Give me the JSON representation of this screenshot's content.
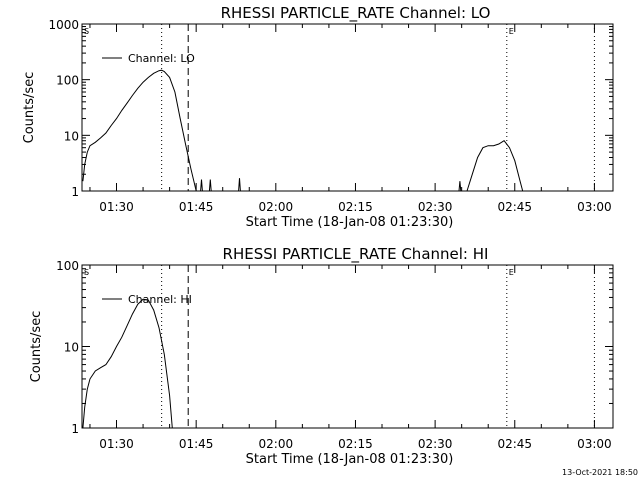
{
  "footer": {
    "stamp": "13-Oct-2021 18:50"
  },
  "chart_data": [
    {
      "type": "line",
      "title": "RHESSI PARTICLE_RATE Channel: LO",
      "xlabel": "Start Time (18-Jan-08 01:23:30)",
      "ylabel": "Counts/sec",
      "legend": {
        "label": "Channel: LO",
        "placement": "top-left"
      },
      "yscale": "log",
      "ylim": [
        1,
        1000
      ],
      "yticks": [
        {
          "v": 1,
          "label": "1"
        },
        {
          "v": 10,
          "label": "10"
        },
        {
          "v": 100,
          "label": "100"
        },
        {
          "v": 1000,
          "label": "1000"
        }
      ],
      "xlim": [
        "01:23:30",
        "03:03:30"
      ],
      "xticks": [
        "01:30",
        "01:45",
        "02:00",
        "02:15",
        "02:30",
        "02:45",
        "03:00"
      ],
      "markers": [
        {
          "time": "01:38:30",
          "style": "dotted",
          "label": ""
        },
        {
          "time": "01:43:30",
          "style": "dashed",
          "label": ""
        },
        {
          "time": "02:43:30",
          "style": "dotted",
          "label": "E"
        },
        {
          "time": "03:00:00",
          "style": "dotted",
          "label": ""
        }
      ],
      "start_label": "S",
      "series": [
        {
          "name": "Channel: LO",
          "segments": [
            [
              [
                "01:23:40",
                1.5
              ],
              [
                "01:24:00",
                3
              ],
              [
                "01:24:30",
                5
              ],
              [
                "01:25:00",
                6.5
              ],
              [
                "01:26:00",
                7.5
              ],
              [
                "01:27:00",
                9
              ],
              [
                "01:28:00",
                11
              ],
              [
                "01:29:00",
                15
              ],
              [
                "01:30:00",
                20
              ],
              [
                "01:31:00",
                28
              ],
              [
                "01:32:00",
                38
              ],
              [
                "01:33:00",
                52
              ],
              [
                "01:34:00",
                70
              ],
              [
                "01:35:00",
                90
              ],
              [
                "01:36:00",
                110
              ],
              [
                "01:37:00",
                130
              ],
              [
                "01:38:00",
                145
              ],
              [
                "01:38:30",
                148
              ],
              [
                "01:39:00",
                140
              ],
              [
                "01:40:00",
                110
              ],
              [
                "01:41:00",
                60
              ],
              [
                "01:42:00",
                20
              ],
              [
                "01:43:00",
                7
              ],
              [
                "01:44:00",
                2.5
              ],
              [
                "01:45:00",
                1
              ]
            ],
            [
              [
                "01:45:50",
                1
              ],
              [
                "01:46:00",
                1.6
              ],
              [
                "01:46:10",
                1
              ]
            ],
            [
              [
                "01:47:30",
                1
              ],
              [
                "01:47:40",
                1.6
              ],
              [
                "01:47:50",
                1
              ]
            ],
            [
              [
                "01:53:00",
                1
              ],
              [
                "01:53:10",
                1.7
              ],
              [
                "01:53:20",
                1
              ]
            ],
            [
              [
                "02:34:30",
                1
              ],
              [
                "02:34:40",
                1.5
              ],
              [
                "02:34:50",
                1
              ]
            ],
            [
              [
                "02:36:00",
                1
              ],
              [
                "02:37:00",
                2
              ],
              [
                "02:38:00",
                4
              ],
              [
                "02:39:00",
                6
              ],
              [
                "02:40:00",
                6.5
              ],
              [
                "02:41:00",
                6.5
              ],
              [
                "02:42:00",
                7
              ],
              [
                "02:43:00",
                8
              ],
              [
                "02:44:00",
                6
              ],
              [
                "02:45:00",
                3.5
              ],
              [
                "02:46:00",
                1.5
              ],
              [
                "02:46:30",
                1
              ]
            ]
          ]
        }
      ]
    },
    {
      "type": "line",
      "title": "RHESSI PARTICLE_RATE Channel: HI",
      "xlabel": "Start Time (18-Jan-08 01:23:30)",
      "ylabel": "Counts/sec",
      "legend": {
        "label": "Channel: HI",
        "placement": "top-left"
      },
      "yscale": "log",
      "ylim": [
        1,
        100
      ],
      "yticks": [
        {
          "v": 1,
          "label": "1"
        },
        {
          "v": 10,
          "label": "10"
        },
        {
          "v": 100,
          "label": "100"
        }
      ],
      "xlim": [
        "01:23:30",
        "03:03:30"
      ],
      "xticks": [
        "01:30",
        "01:45",
        "02:00",
        "02:15",
        "02:30",
        "02:45",
        "03:00"
      ],
      "markers": [
        {
          "time": "01:38:30",
          "style": "dotted",
          "label": ""
        },
        {
          "time": "01:43:30",
          "style": "dashed",
          "label": ""
        },
        {
          "time": "02:43:30",
          "style": "dotted",
          "label": "E"
        },
        {
          "time": "03:00:00",
          "style": "dotted",
          "label": ""
        }
      ],
      "start_label": "S",
      "series": [
        {
          "name": "Channel: HI",
          "segments": [
            [
              [
                "01:23:40",
                1
              ],
              [
                "01:24:00",
                1.8
              ],
              [
                "01:24:30",
                3
              ],
              [
                "01:25:00",
                4
              ],
              [
                "01:26:00",
                5
              ],
              [
                "01:27:00",
                5.5
              ],
              [
                "01:28:00",
                6
              ],
              [
                "01:29:00",
                7.5
              ],
              [
                "01:30:00",
                10
              ],
              [
                "01:31:00",
                13
              ],
              [
                "01:32:00",
                18
              ],
              [
                "01:33:00",
                25
              ],
              [
                "01:34:00",
                33
              ],
              [
                "01:35:00",
                38
              ],
              [
                "01:36:00",
                37
              ],
              [
                "01:37:00",
                28
              ],
              [
                "01:38:00",
                17
              ],
              [
                "01:39:00",
                8
              ],
              [
                "01:40:00",
                2.5
              ],
              [
                "01:40:30",
                1
              ]
            ]
          ]
        }
      ]
    }
  ]
}
